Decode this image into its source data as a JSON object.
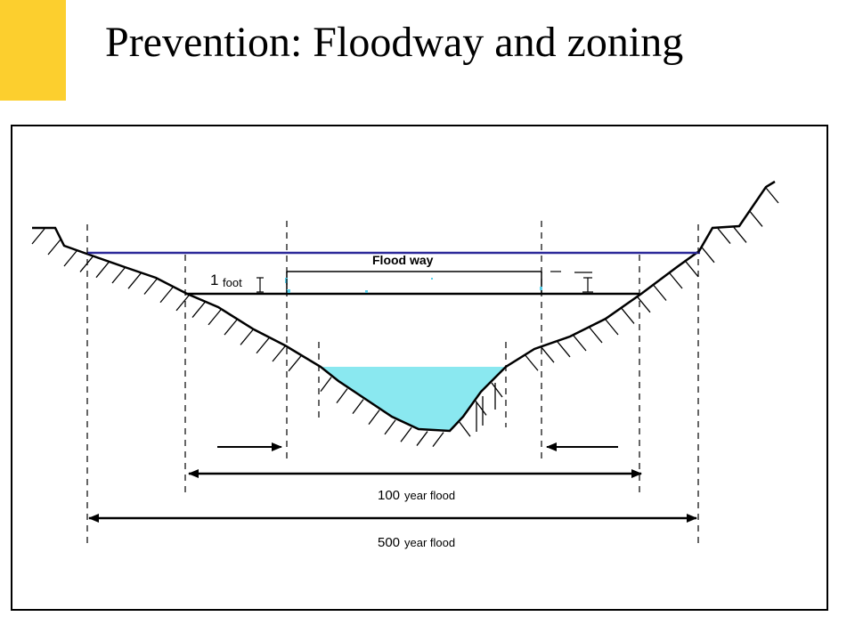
{
  "slide": {
    "title": "Prevention: Floodway and zoning",
    "accent_color": "#fccf2e"
  },
  "diagram": {
    "floodway_label": "Flood way",
    "foot_value": "1",
    "foot_unit": "foot",
    "flood_100": {
      "number": "100",
      "text": "year flood"
    },
    "flood_500": {
      "number": "500",
      "text": "year flood"
    },
    "colors": {
      "floodway_line": "#2d2a9a",
      "river_water": "#8ae8f0",
      "ink": "#000000"
    }
  }
}
